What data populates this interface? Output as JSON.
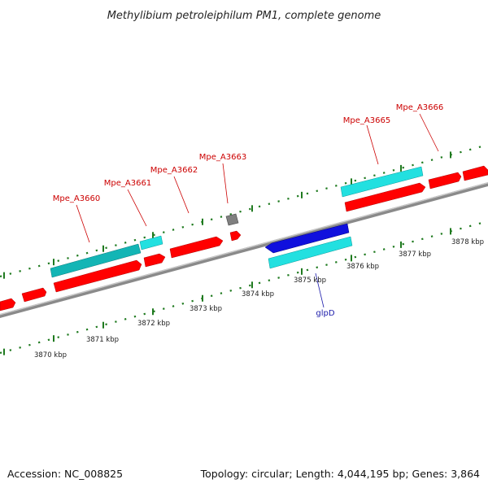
{
  "title": "Methylibium petroleiphilum PM1, complete genome",
  "footer": {
    "accession": "Accession: NC_008825",
    "summary": "Topology: circular; Length: 4,044,195 bp; Genes: 3,864"
  },
  "colors": {
    "backbone": "#8c8c8c",
    "tick": "#1f7a1f",
    "forward_gene": "#ff0000",
    "reverse_gene": "#1010dd",
    "cds_feature": "#22e0e0",
    "cds_feature_dark": "#11aaaa",
    "other_gene": "#808080",
    "locus_label": "#cc0000",
    "gene_label": "#1a1aaa"
  },
  "scale_labels": [
    "3870 kbp",
    "3871 kbp",
    "3872 kbp",
    "3873 kbp",
    "3874 kbp",
    "3875 kbp",
    "3876 kbp",
    "3877 kbp",
    "3878 kbp"
  ],
  "gene_labels": [
    {
      "text": "Mpe_A3660",
      "strand": "forward"
    },
    {
      "text": "Mpe_A3661",
      "strand": "forward"
    },
    {
      "text": "Mpe_A3662",
      "strand": "forward"
    },
    {
      "text": "Mpe_A3663",
      "strand": "forward"
    },
    {
      "text": "Mpe_A3665",
      "strand": "forward"
    },
    {
      "text": "Mpe_A3666",
      "strand": "forward"
    },
    {
      "text": "glpD",
      "strand": "reverse"
    }
  ]
}
